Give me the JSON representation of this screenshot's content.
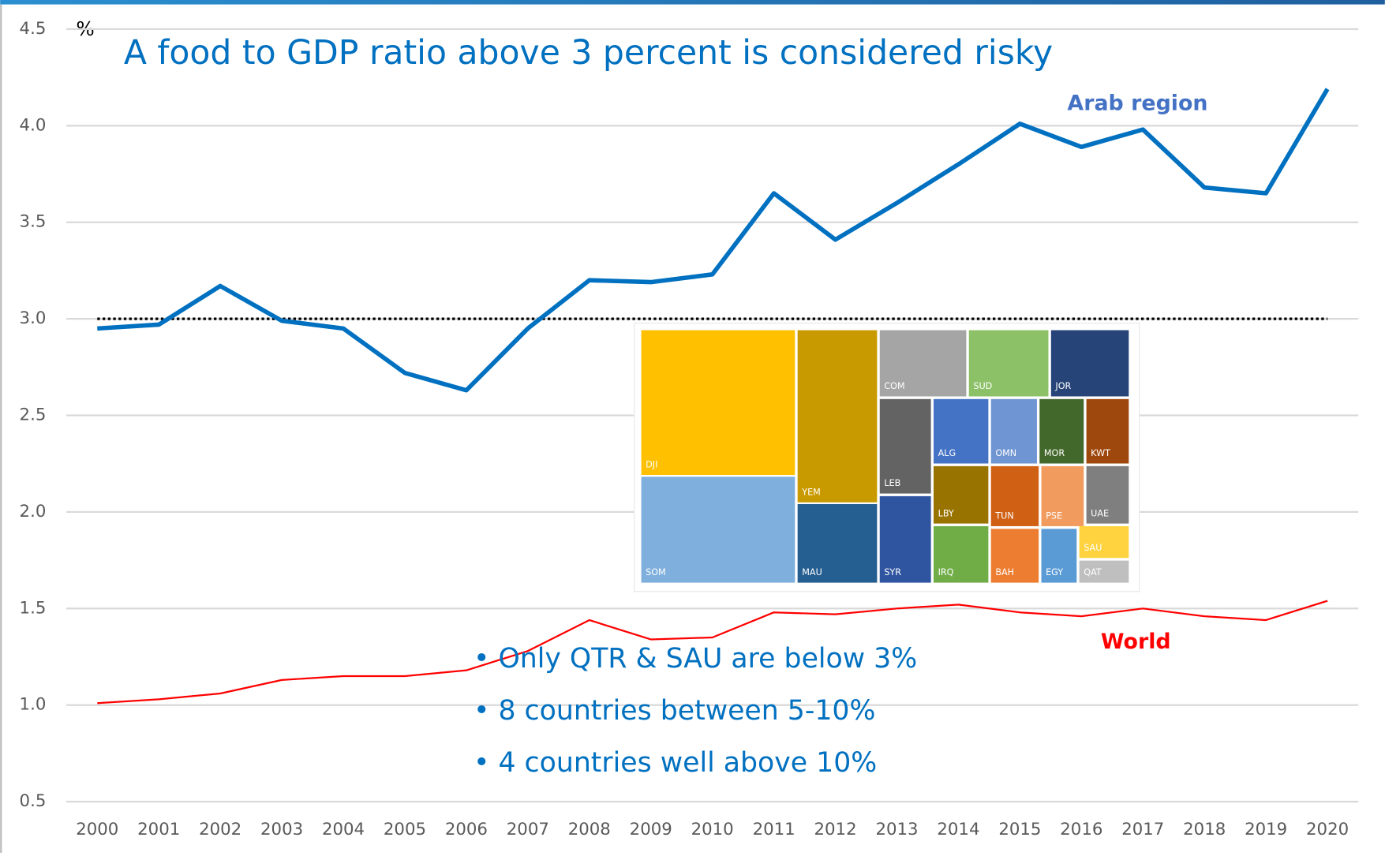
{
  "chart_data": {
    "type": "line",
    "title": "A food to GDP ratio above 3 percent is considered risky",
    "y_label": "%",
    "x": [
      2000,
      2001,
      2002,
      2003,
      2004,
      2005,
      2006,
      2007,
      2008,
      2009,
      2010,
      2011,
      2012,
      2013,
      2014,
      2015,
      2016,
      2017,
      2018,
      2019,
      2020
    ],
    "xlim": [
      2000,
      2020
    ],
    "xticks": [
      2000,
      2001,
      2002,
      2003,
      2004,
      2005,
      2006,
      2007,
      2008,
      2009,
      2010,
      2011,
      2012,
      2013,
      2014,
      2015,
      2016,
      2017,
      2018,
      2019,
      2020
    ],
    "ylim": [
      0.5,
      4.5
    ],
    "yticks": [
      {
        "value": 0.5,
        "label": "0.5"
      },
      {
        "value": 1,
        "label": "1.0"
      },
      {
        "value": 1.5,
        "label": "1.5"
      },
      {
        "value": 2,
        "label": "2.0"
      },
      {
        "value": 2.5,
        "label": "2.5"
      },
      {
        "value": 3,
        "label": "3.0"
      },
      {
        "value": 3.5,
        "label": "3.5"
      },
      {
        "value": 4,
        "label": "4.0"
      },
      {
        "value": 4.5,
        "label": "4.5"
      }
    ],
    "grid": true,
    "threshold": 3,
    "series": [
      {
        "name": "Arab region",
        "color": "#0070c0",
        "values": [
          2.95,
          2.97,
          3.17,
          2.99,
          2.95,
          2.72,
          2.63,
          2.95,
          3.2,
          3.19,
          3.23,
          3.65,
          3.41,
          3.6,
          3.8,
          4.01,
          3.89,
          3.98,
          3.68,
          3.65,
          4.19
        ]
      },
      {
        "name": "World",
        "color": "#ff0000",
        "values": [
          1.01,
          1.03,
          1.06,
          1.13,
          1.15,
          1.15,
          1.18,
          1.28,
          1.44,
          1.34,
          1.35,
          1.48,
          1.47,
          1.5,
          1.52,
          1.48,
          1.46,
          1.5,
          1.46,
          1.44,
          1.54
        ]
      }
    ],
    "notes": [
      "• Only QTR & SAU are below 3%",
      "• 8 countries between 5-10%",
      "• 4 countries well above 10%"
    ],
    "treemap": [
      {
        "label": "DJI",
        "color": "#ffc000"
      },
      {
        "label": "SOM",
        "color": "#7fafdd"
      },
      {
        "label": "YEM",
        "color": "#c99a00"
      },
      {
        "label": "MAU",
        "color": "#255e91"
      },
      {
        "label": "COM",
        "color": "#a5a5a5"
      },
      {
        "label": "SUD",
        "color": "#8cc168"
      },
      {
        "label": "JOR",
        "color": "#264478"
      },
      {
        "label": "LEB",
        "color": "#636363"
      },
      {
        "label": "SYR",
        "color": "#2f55a0"
      },
      {
        "label": "ALG",
        "color": "#4472c4"
      },
      {
        "label": "OMN",
        "color": "#6f95d2"
      },
      {
        "label": "MOR",
        "color": "#43682b"
      },
      {
        "label": "KWT",
        "color": "#9e480e"
      },
      {
        "label": "LBY",
        "color": "#997300"
      },
      {
        "label": "TUN",
        "color": "#d06014"
      },
      {
        "label": "PSE",
        "color": "#f19b5f"
      },
      {
        "label": "UAE",
        "color": "#7f7f7f"
      },
      {
        "label": "IRQ",
        "color": "#70ad47"
      },
      {
        "label": "BAH",
        "color": "#ed7d31"
      },
      {
        "label": "EGY",
        "color": "#5b9bd5"
      },
      {
        "label": "SAU",
        "color": "#ffd33f"
      },
      {
        "label": "QAT",
        "color": "#bfbfbf"
      }
    ]
  }
}
